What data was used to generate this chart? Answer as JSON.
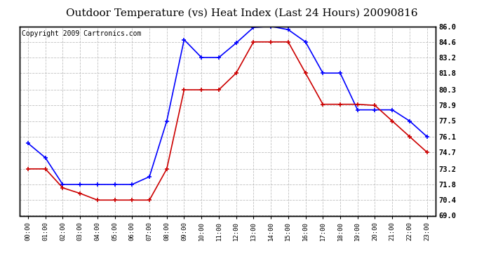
{
  "title": "Outdoor Temperature (vs) Heat Index (Last 24 Hours) 20090816",
  "copyright": "Copyright 2009 Cartronics.com",
  "hours": [
    "00:00",
    "01:00",
    "02:00",
    "03:00",
    "04:00",
    "05:00",
    "06:00",
    "07:00",
    "08:00",
    "09:00",
    "10:00",
    "11:00",
    "12:00",
    "13:00",
    "14:00",
    "15:00",
    "16:00",
    "17:00",
    "18:00",
    "19:00",
    "20:00",
    "21:00",
    "22:00",
    "23:00"
  ],
  "blue_temp": [
    75.5,
    74.2,
    71.8,
    71.8,
    71.8,
    71.8,
    71.8,
    72.5,
    77.5,
    84.8,
    83.2,
    83.2,
    84.5,
    85.9,
    86.0,
    85.7,
    84.6,
    81.8,
    81.8,
    78.5,
    78.5,
    78.5,
    77.5,
    76.1
  ],
  "red_heat": [
    73.2,
    73.2,
    71.5,
    71.0,
    70.4,
    70.4,
    70.4,
    70.4,
    73.2,
    80.3,
    80.3,
    80.3,
    81.8,
    84.6,
    84.6,
    84.6,
    81.8,
    79.0,
    79.0,
    79.0,
    78.9,
    77.5,
    76.1,
    74.7
  ],
  "ylim": [
    69.0,
    86.0
  ],
  "yticks": [
    69.0,
    70.4,
    71.8,
    73.2,
    74.7,
    76.1,
    77.5,
    78.9,
    80.3,
    81.8,
    83.2,
    84.6,
    86.0
  ],
  "blue_color": "#0000ff",
  "red_color": "#cc0000",
  "bg_color": "#ffffff",
  "grid_color": "#b0b0b0",
  "title_fontsize": 11,
  "copyright_fontsize": 7
}
